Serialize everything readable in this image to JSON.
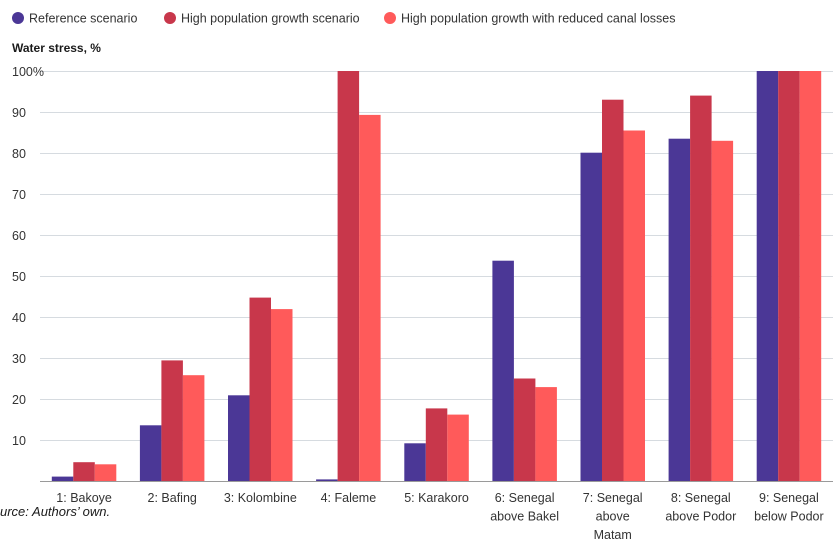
{
  "chart_data": {
    "type": "bar",
    "ylabel": "Water stress, %",
    "ylim": [
      0,
      100
    ],
    "yticks": [
      10,
      20,
      30,
      40,
      50,
      60,
      70,
      80,
      90,
      100
    ],
    "ytick_labels": [
      "10",
      "20",
      "30",
      "40",
      "50",
      "60",
      "70",
      "80",
      "90",
      "100%"
    ],
    "grid": true,
    "legend_position": "top-left",
    "categories": [
      [
        "1: Bakoye"
      ],
      [
        "2: Bafing"
      ],
      [
        "3: Kolombine"
      ],
      [
        "4: Faleme"
      ],
      [
        "5: Karakoro"
      ],
      [
        "6: Senegal",
        "above Bakel"
      ],
      [
        "7: Senegal",
        "above",
        "Matam"
      ],
      [
        "8: Senegal",
        "above Podor"
      ],
      [
        "9: Senegal",
        "below Podor"
      ]
    ],
    "series": [
      {
        "name": "Reference scenario",
        "color": "#4b3796",
        "values": [
          1.2,
          13.7,
          21,
          0.5,
          9.3,
          53.8,
          80.1,
          83.5,
          100
        ]
      },
      {
        "name": "High population growth scenario",
        "color": "#c8374b",
        "values": [
          4.7,
          29.5,
          44.8,
          100,
          17.8,
          25.1,
          93,
          94,
          100
        ]
      },
      {
        "name": "High population growth with reduced canal losses",
        "color": "#ff5a5a",
        "values": [
          4.2,
          25.9,
          42,
          89.3,
          16.3,
          23,
          85.5,
          83,
          100
        ]
      }
    ]
  },
  "source_note": "urce: Authors’ own."
}
